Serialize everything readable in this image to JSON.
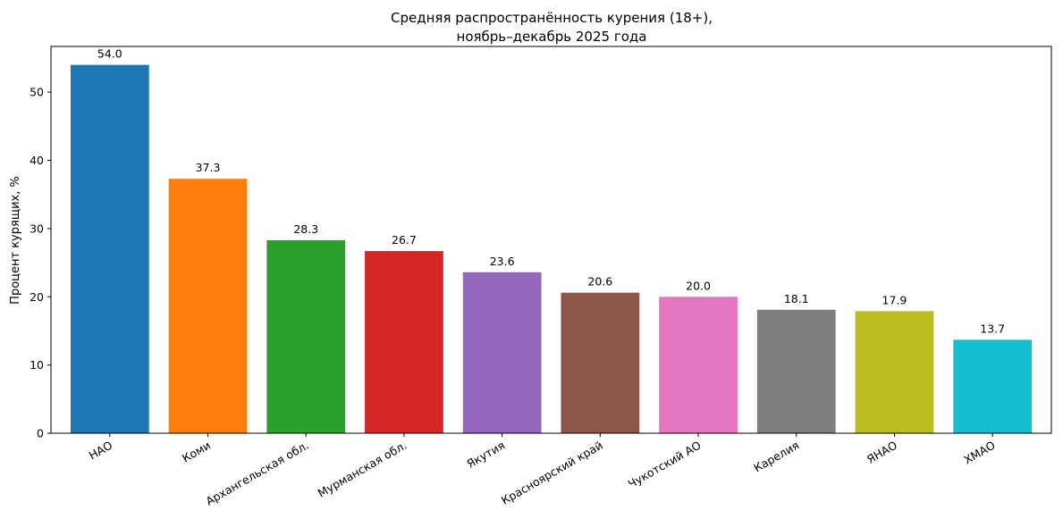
{
  "chart_data": {
    "type": "bar",
    "title_lines": [
      "Средняя распространённость курения (18+),",
      "ноябрь–декабрь 2025 года"
    ],
    "xlabel": "",
    "ylabel": "Процент курящих, %",
    "ylim": [
      0,
      56.7
    ],
    "yticks": [
      0,
      10,
      20,
      30,
      40,
      50
    ],
    "categories": [
      "НАО",
      "Коми",
      "Архангельская обл.",
      "Мурманская обл.",
      "Якутия",
      "Красноярский край",
      "Чукотский АО",
      "Карелия",
      "ЯНАО",
      "ХМАО"
    ],
    "values": [
      54.0,
      37.3,
      28.3,
      26.7,
      23.6,
      20.6,
      20.0,
      18.1,
      17.9,
      13.7
    ],
    "value_labels": [
      "54.0",
      "37.3",
      "28.3",
      "26.7",
      "23.6",
      "20.6",
      "20.0",
      "18.1",
      "17.9",
      "13.7"
    ],
    "colors": [
      "#1f77b4",
      "#ff7f0e",
      "#2ca02c",
      "#d62728",
      "#9467bd",
      "#8c564b",
      "#e377c2",
      "#7f7f7f",
      "#bcbd22",
      "#17becf"
    ],
    "grid": false,
    "legend": "none",
    "xtick_rotation": 30
  }
}
